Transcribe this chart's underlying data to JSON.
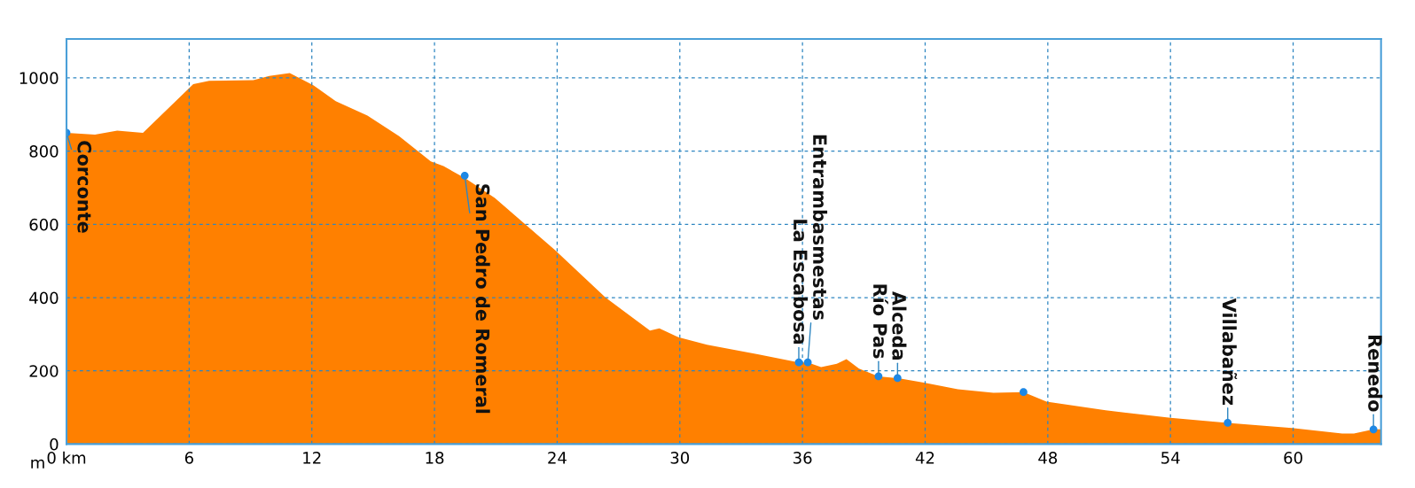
{
  "chart_data": {
    "type": "area",
    "ylabel": "m",
    "xlim": [
      0,
      64.3
    ],
    "xticks": [
      {
        "value": 0,
        "label": "0 km"
      },
      6,
      12,
      18,
      24,
      30,
      36,
      42,
      48,
      54,
      60
    ],
    "ylim": [
      0,
      1106
    ],
    "yticks": [
      0,
      200,
      400,
      600,
      800,
      1000
    ],
    "grid": true,
    "series": [
      {
        "color": "#ff8000",
        "x": [
          0,
          1.39,
          2.48,
          3.74,
          6.2,
          6.98,
          9.14,
          9.92,
          10.92,
          12.09,
          13.17,
          14.72,
          16.27,
          17.82,
          18.44,
          19.52,
          20.95,
          23.89,
          26.37,
          28.54,
          29.0,
          29.93,
          31.33,
          33.81,
          35.82,
          36.26,
          36.91,
          37.68,
          38.15,
          38.77,
          39.72,
          40.65,
          41.99,
          43.6,
          45.34,
          46.81,
          47.94,
          50.83,
          54.0,
          56.8,
          59.94,
          62.4,
          62.97,
          63.93,
          64.3
        ],
        "values": [
          850,
          845,
          856,
          850,
          983,
          992,
          994,
          1005,
          1013,
          979,
          936,
          897,
          841,
          772,
          759,
          725,
          672,
          530,
          400,
          310,
          316,
          292,
          271,
          245,
          223,
          223,
          210,
          219,
          232,
          206,
          185,
          180,
          167,
          150,
          140,
          142,
          116,
          92,
          72,
          58,
          44,
          29,
          29,
          40,
          40
        ]
      },
      {
        "type": "scatter",
        "color": "#1e88e5",
        "marker": "circle",
        "x": [
          0,
          19.48,
          35.82,
          36.26,
          39.72,
          40.65,
          46.81,
          56.8,
          63.93
        ],
        "values": [
          850,
          733,
          223,
          223,
          185,
          180,
          142,
          58,
          40
        ]
      }
    ],
    "annotations": [
      {
        "text": "Corconte",
        "x": 0,
        "y": 850
      },
      {
        "text": "San Pedro de Romeral",
        "x": 19.48,
        "y": 733
      },
      {
        "text": "La Escabosa",
        "x": 35.82,
        "y": 223
      },
      {
        "text": "Entrambasmestas",
        "x": 36.26,
        "y": 223
      },
      {
        "text": "Río Pas",
        "x": 39.72,
        "y": 185
      },
      {
        "text": "Alceda",
        "x": 40.65,
        "y": 180
      },
      {
        "text": "Villabañez",
        "x": 56.8,
        "y": 58
      },
      {
        "text": "Renedo",
        "x": 63.93,
        "y": 40
      }
    ]
  }
}
